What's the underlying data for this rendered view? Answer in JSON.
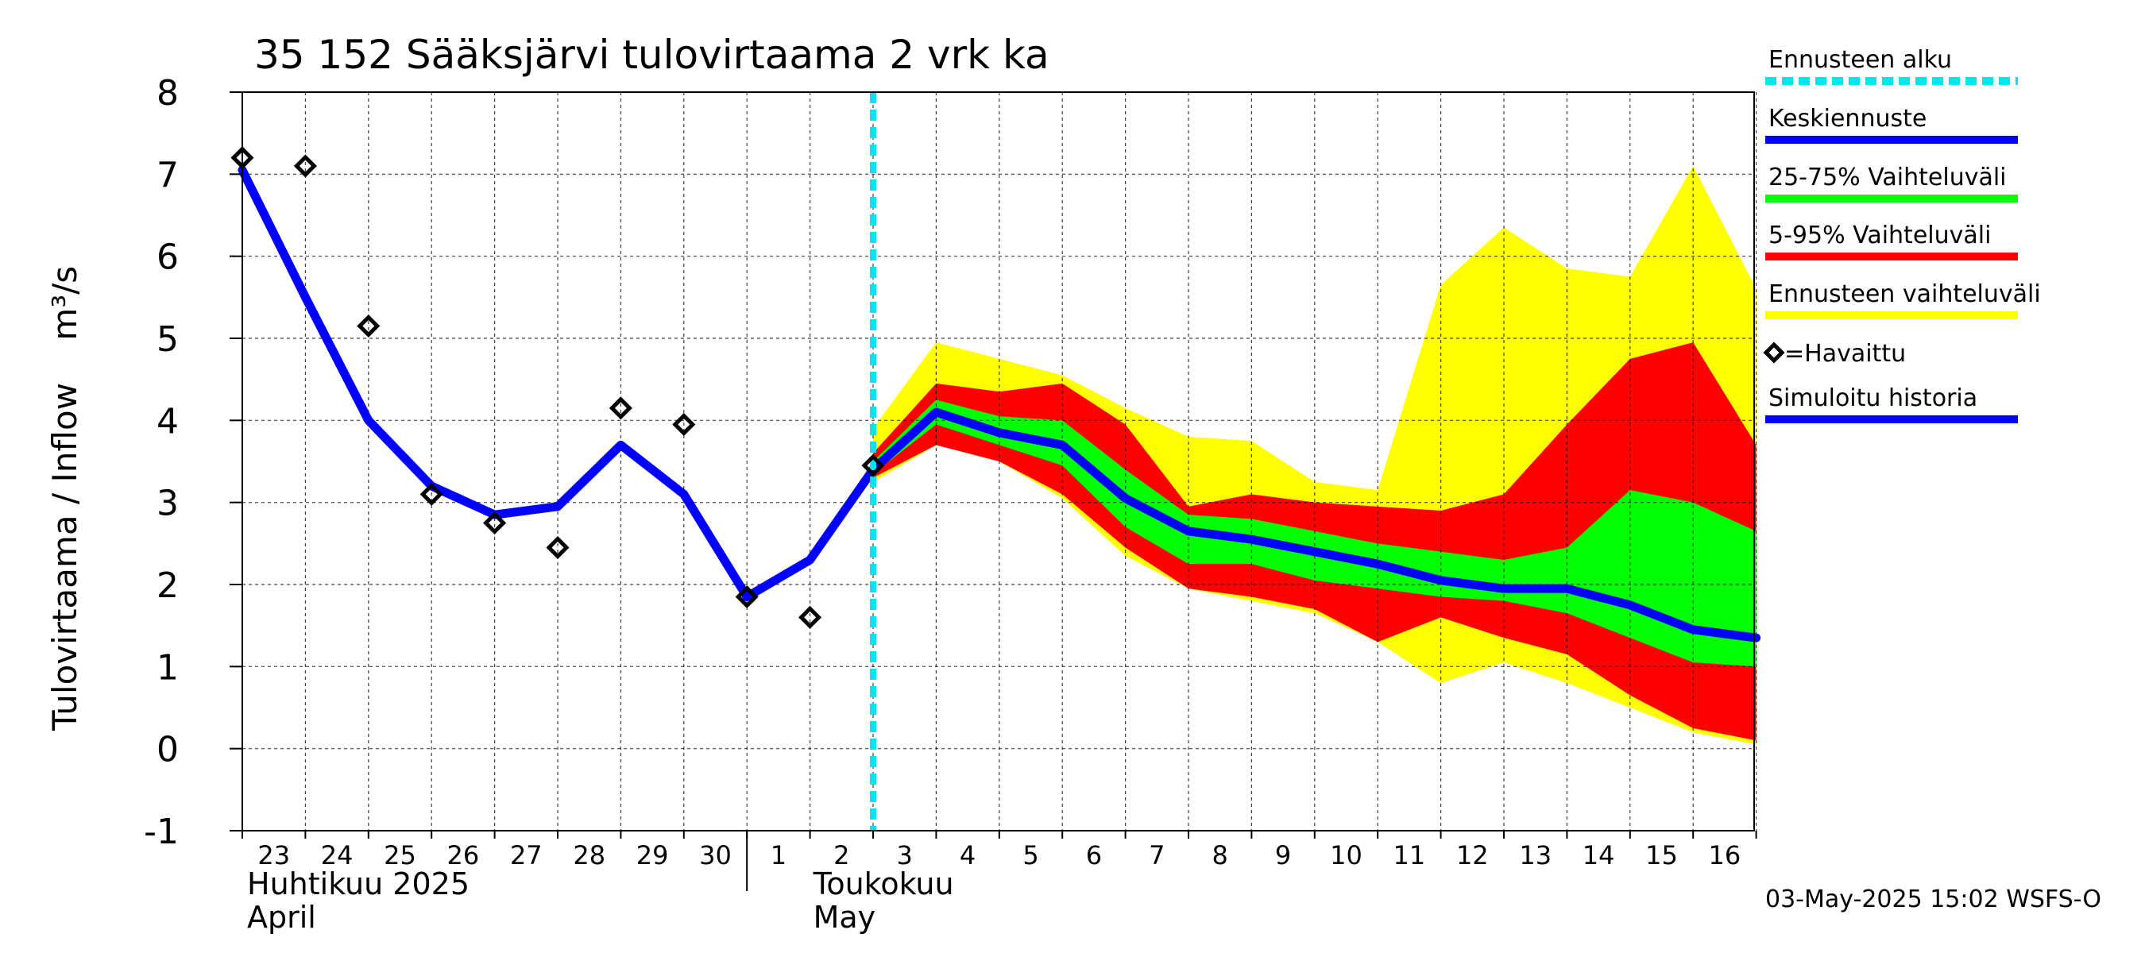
{
  "chart_data": {
    "type": "line",
    "title": "35 152 Sääksjärvi tulovirtaama 2 vrk ka",
    "ylabel": "Tulovirtaama / Inflow    m³/s",
    "ylim": [
      -1,
      8
    ],
    "yticks": [
      "-1",
      "0",
      "1",
      "2",
      "3",
      "4",
      "5",
      "6",
      "7",
      "8"
    ],
    "grid": true,
    "x_day_labels": [
      "23",
      "24",
      "25",
      "26",
      "27",
      "28",
      "29",
      "30",
      "1",
      "2",
      "3",
      "4",
      "5",
      "6",
      "7",
      "8",
      "9",
      "10",
      "11",
      "12",
      "13",
      "14",
      "15",
      "16"
    ],
    "month_labels": [
      {
        "line1": "Huhtikuu  2025",
        "line2": "April"
      },
      {
        "line1": "Toukokuu",
        "line2": "May"
      }
    ],
    "forecast_start_day": 10,
    "series": [
      {
        "name": "Simuloitu historia",
        "color": "#0000ff",
        "x": [
          0,
          1,
          2,
          3,
          4,
          5,
          6,
          7,
          8,
          9,
          10
        ],
        "values": [
          7.05,
          5.5,
          4.0,
          3.2,
          2.85,
          2.95,
          3.7,
          3.1,
          1.85,
          2.3,
          3.4
        ]
      },
      {
        "name": "=Havaittu",
        "type": "scatter",
        "color": "#000000",
        "x": [
          0,
          1,
          2,
          3,
          4,
          5,
          6,
          7,
          8,
          9,
          10
        ],
        "values": [
          7.2,
          7.1,
          5.15,
          3.1,
          2.75,
          2.45,
          4.15,
          3.95,
          1.85,
          1.6,
          3.45
        ]
      },
      {
        "name": "Keskiennuste",
        "color": "#0000ff",
        "x": [
          10,
          11,
          12,
          13,
          14,
          15,
          16,
          17,
          18,
          19,
          20,
          21,
          22,
          23,
          24
        ],
        "values": [
          3.4,
          4.1,
          3.85,
          3.7,
          3.05,
          2.65,
          2.55,
          2.4,
          2.25,
          2.05,
          1.95,
          1.95,
          1.75,
          1.45,
          1.35
        ]
      }
    ],
    "bands": [
      {
        "name": "Ennusteen vaihteluväli",
        "color": "#ffff00",
        "x": [
          10,
          11,
          12,
          13,
          14,
          15,
          16,
          17,
          18,
          19,
          20,
          21,
          22,
          23,
          24
        ],
        "upper": [
          3.9,
          4.95,
          4.75,
          4.55,
          4.15,
          3.8,
          3.75,
          3.25,
          3.15,
          5.65,
          6.35,
          5.85,
          5.75,
          7.1,
          5.6
        ],
        "lower": [
          3.25,
          3.7,
          3.5,
          3.05,
          2.35,
          1.95,
          1.8,
          1.65,
          1.3,
          0.8,
          1.05,
          0.8,
          0.5,
          0.2,
          0.05
        ]
      },
      {
        "name": "5-95% Vaihteluväli",
        "color": "#ff0000",
        "x": [
          10,
          11,
          12,
          13,
          14,
          15,
          16,
          17,
          18,
          19,
          20,
          21,
          22,
          23,
          24
        ],
        "upper": [
          3.6,
          4.45,
          4.35,
          4.45,
          3.95,
          2.95,
          3.1,
          3.0,
          2.95,
          2.9,
          3.1,
          3.95,
          4.75,
          4.95,
          3.7
        ],
        "lower": [
          3.3,
          3.7,
          3.5,
          3.1,
          2.45,
          1.95,
          1.85,
          1.7,
          1.3,
          1.6,
          1.35,
          1.15,
          0.65,
          0.25,
          0.1
        ]
      },
      {
        "name": "25-75% Vaihteluväli",
        "color": "#00ff00",
        "x": [
          10,
          11,
          12,
          13,
          14,
          15,
          16,
          17,
          18,
          19,
          20,
          21,
          22,
          23,
          24
        ],
        "upper": [
          3.5,
          4.25,
          4.05,
          4.0,
          3.4,
          2.85,
          2.8,
          2.65,
          2.5,
          2.4,
          2.3,
          2.45,
          3.15,
          3.0,
          2.65
        ],
        "lower": [
          3.35,
          3.95,
          3.7,
          3.45,
          2.7,
          2.25,
          2.25,
          2.05,
          1.95,
          1.85,
          1.8,
          1.65,
          1.35,
          1.05,
          1.0
        ]
      }
    ],
    "legend": [
      {
        "label": "Ennusteen alku",
        "color": "#00e5ee",
        "style": "dashed"
      },
      {
        "label": "Keskiennuste",
        "color": "#0000ff",
        "style": "solid"
      },
      {
        "label": "25-75% Vaihteluväli",
        "color": "#00ff00",
        "style": "solid"
      },
      {
        "label": "5-95% Vaihteluväli",
        "color": "#ff0000",
        "style": "solid"
      },
      {
        "label": "Ennusteen vaihteluväli",
        "color": "#ffff00",
        "style": "solid"
      },
      {
        "label": "=Havaittu",
        "color": "#000000",
        "style": "marker"
      },
      {
        "label": "Simuloitu historia",
        "color": "#0000ff",
        "style": "solid"
      }
    ],
    "legend_position": "right"
  },
  "footer": "03-May-2025 15:02 WSFS-O"
}
